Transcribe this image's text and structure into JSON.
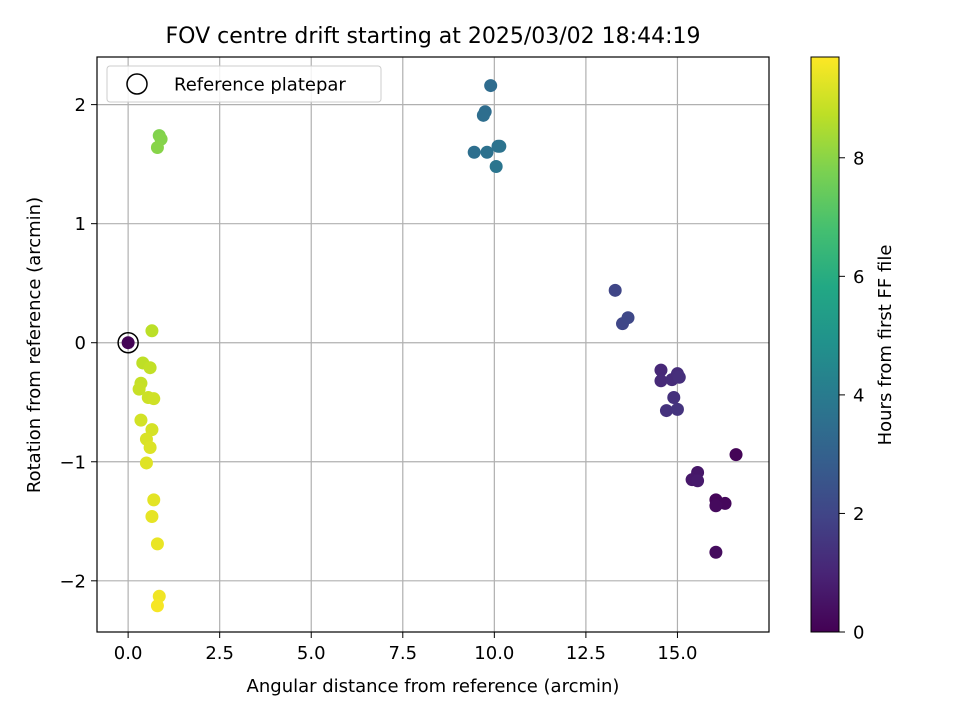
{
  "chart_data": {
    "type": "scatter",
    "title": "FOV centre drift starting at 2025/03/02 18:44:19",
    "xlabel": "Angular distance from reference (arcmin)",
    "ylabel": "Rotation from reference (arcmin)",
    "xlim": [
      -0.85,
      17.5
    ],
    "ylim": [
      -2.43,
      2.4
    ],
    "x_ticks": [
      0.0,
      2.5,
      5.0,
      7.5,
      10.0,
      12.5,
      15.0
    ],
    "x_tick_labels": [
      "0.0",
      "2.5",
      "5.0",
      "7.5",
      "10.0",
      "12.5",
      "15.0"
    ],
    "y_ticks": [
      -2,
      -1,
      0,
      1,
      2
    ],
    "y_tick_labels": [
      "−2",
      "−1",
      "0",
      "1",
      "2"
    ],
    "grid": true,
    "colormap": "viridis",
    "colorbar": {
      "label": "Hours from first FF file",
      "min": 0,
      "max": 9.7,
      "ticks": [
        0,
        2,
        4,
        6,
        8
      ],
      "tick_labels": [
        "0",
        "2",
        "4",
        "6",
        "8"
      ]
    },
    "legend": {
      "placement": "upper-left",
      "entries": [
        "Reference platepar"
      ]
    },
    "reference_point": {
      "x": 0,
      "y": 0
    },
    "points": [
      {
        "x": 0.0,
        "y": 0.0,
        "c": 0.05
      },
      {
        "x": 16.6,
        "y": -0.94,
        "c": 0.1
      },
      {
        "x": 16.05,
        "y": -1.32,
        "c": 0.15
      },
      {
        "x": 16.3,
        "y": -1.35,
        "c": 0.2
      },
      {
        "x": 16.05,
        "y": -1.37,
        "c": 0.25
      },
      {
        "x": 16.05,
        "y": -1.76,
        "c": 0.3
      },
      {
        "x": 15.55,
        "y": -1.09,
        "c": 0.6
      },
      {
        "x": 15.4,
        "y": -1.15,
        "c": 0.65
      },
      {
        "x": 15.55,
        "y": -1.16,
        "c": 0.7
      },
      {
        "x": 14.55,
        "y": -0.23,
        "c": 1.1
      },
      {
        "x": 14.55,
        "y": -0.32,
        "c": 1.15
      },
      {
        "x": 14.85,
        "y": -0.31,
        "c": 1.2
      },
      {
        "x": 15.0,
        "y": -0.26,
        "c": 1.25
      },
      {
        "x": 15.05,
        "y": -0.29,
        "c": 1.3
      },
      {
        "x": 14.9,
        "y": -0.46,
        "c": 1.35
      },
      {
        "x": 14.7,
        "y": -0.57,
        "c": 1.4
      },
      {
        "x": 15.0,
        "y": -0.56,
        "c": 1.45
      },
      {
        "x": 13.3,
        "y": 0.44,
        "c": 2.0
      },
      {
        "x": 13.5,
        "y": 0.16,
        "c": 2.05
      },
      {
        "x": 13.65,
        "y": 0.21,
        "c": 2.1
      },
      {
        "x": 9.9,
        "y": 2.16,
        "c": 3.4
      },
      {
        "x": 9.75,
        "y": 1.94,
        "c": 3.45
      },
      {
        "x": 9.7,
        "y": 1.91,
        "c": 3.5
      },
      {
        "x": 9.45,
        "y": 1.6,
        "c": 3.55
      },
      {
        "x": 9.8,
        "y": 1.6,
        "c": 3.6
      },
      {
        "x": 10.1,
        "y": 1.65,
        "c": 3.65
      },
      {
        "x": 10.15,
        "y": 1.65,
        "c": 3.7
      },
      {
        "x": 10.05,
        "y": 1.48,
        "c": 3.75
      },
      {
        "x": 0.85,
        "y": 1.74,
        "c": 7.85
      },
      {
        "x": 0.9,
        "y": 1.71,
        "c": 7.9
      },
      {
        "x": 0.8,
        "y": 1.64,
        "c": 7.95
      },
      {
        "x": 0.65,
        "y": 0.1,
        "c": 8.7
      },
      {
        "x": 0.4,
        "y": -0.17,
        "c": 8.75
      },
      {
        "x": 0.6,
        "y": -0.21,
        "c": 8.8
      },
      {
        "x": 0.35,
        "y": -0.34,
        "c": 8.85
      },
      {
        "x": 0.3,
        "y": -0.39,
        "c": 8.9
      },
      {
        "x": 0.55,
        "y": -0.46,
        "c": 8.95
      },
      {
        "x": 0.7,
        "y": -0.47,
        "c": 9.0
      },
      {
        "x": 0.35,
        "y": -0.65,
        "c": 9.05
      },
      {
        "x": 0.65,
        "y": -0.73,
        "c": 9.1
      },
      {
        "x": 0.5,
        "y": -0.81,
        "c": 9.15
      },
      {
        "x": 0.6,
        "y": -0.88,
        "c": 9.2
      },
      {
        "x": 0.5,
        "y": -1.01,
        "c": 9.25
      },
      {
        "x": 0.7,
        "y": -1.32,
        "c": 9.3
      },
      {
        "x": 0.65,
        "y": -1.46,
        "c": 9.35
      },
      {
        "x": 0.8,
        "y": -1.69,
        "c": 9.4
      },
      {
        "x": 0.85,
        "y": -2.13,
        "c": 9.5
      },
      {
        "x": 0.8,
        "y": -2.21,
        "c": 9.6
      }
    ]
  }
}
